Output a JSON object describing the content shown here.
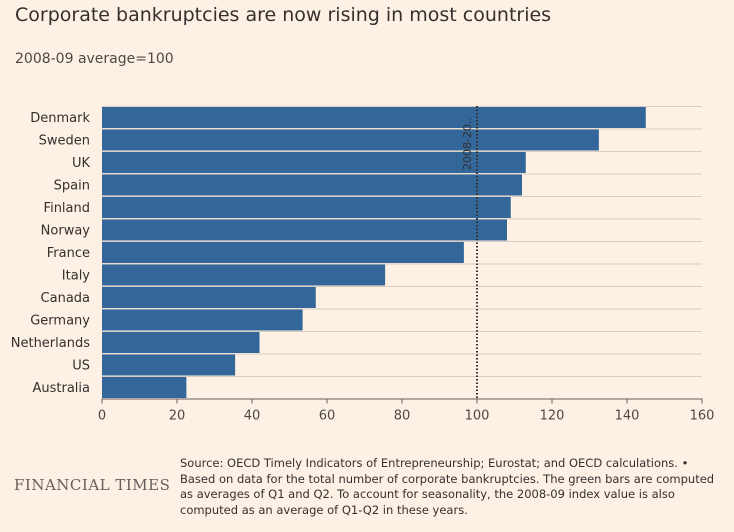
{
  "header": {
    "title": "Corporate bankruptcies are now rising in most countries",
    "subtitle": "2008-09 average=100"
  },
  "footer": {
    "brand": "FINANCIAL TIMES",
    "source": "Source: OECD Timely Indicators of Entrepreneurship; Eurostat; and OECD calculations. • Based on data for the total number of corporate bankruptcies. The green bars are computed as averages of Q1 and Q2. To account for seasonality, the 2008-09 index value is also computed as an average of Q1-Q2 in these years."
  },
  "colors": {
    "background": "#fdf1e5",
    "bar": "#336699",
    "grid": "#d9cdc2",
    "reference_line": "#33302e"
  },
  "chart_data": {
    "type": "bar",
    "orientation": "horizontal",
    "title": "Corporate bankruptcies are now rising in most countries",
    "subtitle": "2008-09 average=100",
    "categories": [
      "Denmark",
      "Sweden",
      "UK",
      "Spain",
      "Finland",
      "Norway",
      "France",
      "Italy",
      "Canada",
      "Germany",
      "Netherlands",
      "US",
      "Australia"
    ],
    "values": [
      145,
      132.5,
      113,
      112,
      109,
      108,
      96.5,
      75.5,
      57,
      53.5,
      42,
      35.5,
      22.5
    ],
    "xlim": [
      0,
      160
    ],
    "xticks": [
      0,
      20,
      40,
      60,
      80,
      100,
      120,
      140,
      160
    ],
    "grid": true,
    "reference_line": {
      "value": 100,
      "label": "2008-20..",
      "style": "dotted"
    }
  }
}
